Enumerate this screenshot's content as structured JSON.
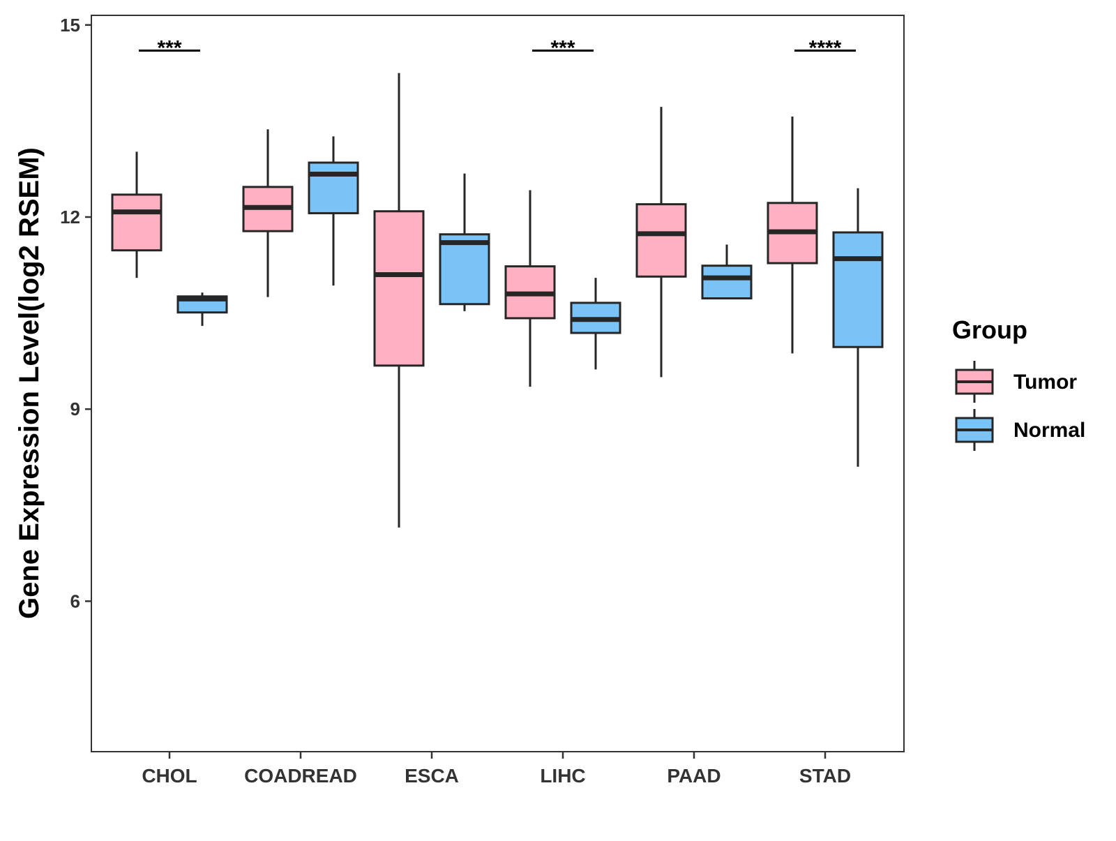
{
  "chart_data": {
    "type": "boxplot",
    "title": "",
    "xlabel": "",
    "ylabel": "Gene Expression Level(log2 RSEM)",
    "ylim": [
      3.65,
      15.15
    ],
    "yticks": [
      6,
      9,
      12,
      15
    ],
    "categories": [
      "CHOL",
      "COADREAD",
      "ESCA",
      "LIHC",
      "PAAD",
      "STAD"
    ],
    "legend": {
      "title": "Group",
      "placement": "right",
      "entries": [
        {
          "name": "Tumor",
          "color": "#FFB1C1"
        },
        {
          "name": "Normal",
          "color": "#7AC3F7"
        }
      ]
    },
    "series": [
      {
        "name": "Tumor",
        "color": "#FFB1C1",
        "boxes": [
          {
            "category": "CHOL",
            "min": 11.05,
            "q1": 11.48,
            "median": 12.08,
            "q3": 12.35,
            "max": 13.02
          },
          {
            "category": "COADREAD",
            "min": 10.75,
            "q1": 11.78,
            "median": 12.15,
            "q3": 12.47,
            "max": 13.37
          },
          {
            "category": "ESCA",
            "min": 7.15,
            "q1": 9.68,
            "median": 11.1,
            "q3": 12.09,
            "max": 14.25
          },
          {
            "category": "LIHC",
            "min": 9.35,
            "q1": 10.42,
            "median": 10.8,
            "q3": 11.23,
            "max": 12.42
          },
          {
            "category": "PAAD",
            "min": 9.5,
            "q1": 11.07,
            "median": 11.74,
            "q3": 12.2,
            "max": 13.72
          },
          {
            "category": "STAD",
            "min": 9.87,
            "q1": 11.28,
            "median": 11.77,
            "q3": 12.22,
            "max": 13.57
          }
        ]
      },
      {
        "name": "Normal",
        "color": "#7AC3F7",
        "boxes": [
          {
            "category": "CHOL",
            "min": 10.3,
            "q1": 10.51,
            "median": 10.72,
            "q3": 10.76,
            "max": 10.82
          },
          {
            "category": "COADREAD",
            "min": 10.93,
            "q1": 12.06,
            "median": 12.67,
            "q3": 12.85,
            "max": 13.26
          },
          {
            "category": "ESCA",
            "min": 10.53,
            "q1": 10.64,
            "median": 11.6,
            "q3": 11.73,
            "max": 12.68
          },
          {
            "category": "LIHC",
            "min": 9.62,
            "q1": 10.19,
            "median": 10.4,
            "q3": 10.66,
            "max": 11.05
          },
          {
            "category": "PAAD",
            "min": 10.73,
            "q1": 10.73,
            "median": 11.05,
            "q3": 11.24,
            "max": 11.57
          },
          {
            "category": "STAD",
            "min": 8.1,
            "q1": 9.97,
            "median": 11.35,
            "q3": 11.76,
            "max": 12.45
          }
        ]
      }
    ],
    "significance": [
      {
        "category": "CHOL",
        "label": "***"
      },
      {
        "category": "LIHC",
        "label": "***"
      },
      {
        "category": "STAD",
        "label": "****"
      }
    ],
    "sig_bar_value": 14.6
  },
  "colors": {
    "box_stroke": "#262626",
    "axis": "#333333"
  }
}
